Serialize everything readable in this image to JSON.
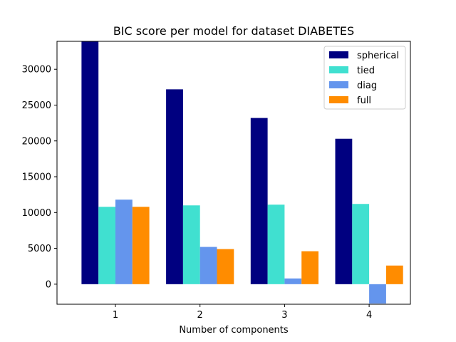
{
  "chart_data": {
    "type": "bar",
    "title": "BIC score per model for dataset DIABETES",
    "xlabel": "Number of components",
    "ylabel": "",
    "categories": [
      "1",
      "2",
      "3",
      "4"
    ],
    "series": [
      {
        "name": "spherical",
        "color": "#000080",
        "values": [
          34500,
          27200,
          23200,
          20300
        ]
      },
      {
        "name": "tied",
        "color": "#40e0d0",
        "values": [
          10800,
          11000,
          11100,
          11200
        ]
      },
      {
        "name": "diag",
        "color": "#6495ed",
        "values": [
          11800,
          5200,
          800,
          -2700
        ]
      },
      {
        "name": "full",
        "color": "#ff8c00",
        "values": [
          10800,
          4900,
          4600,
          2600
        ]
      }
    ],
    "ylim": [
      -2800,
      33900
    ],
    "yticks": [
      0,
      5000,
      10000,
      15000,
      20000,
      25000,
      30000
    ],
    "grid": false,
    "legend_position": "top-right"
  }
}
